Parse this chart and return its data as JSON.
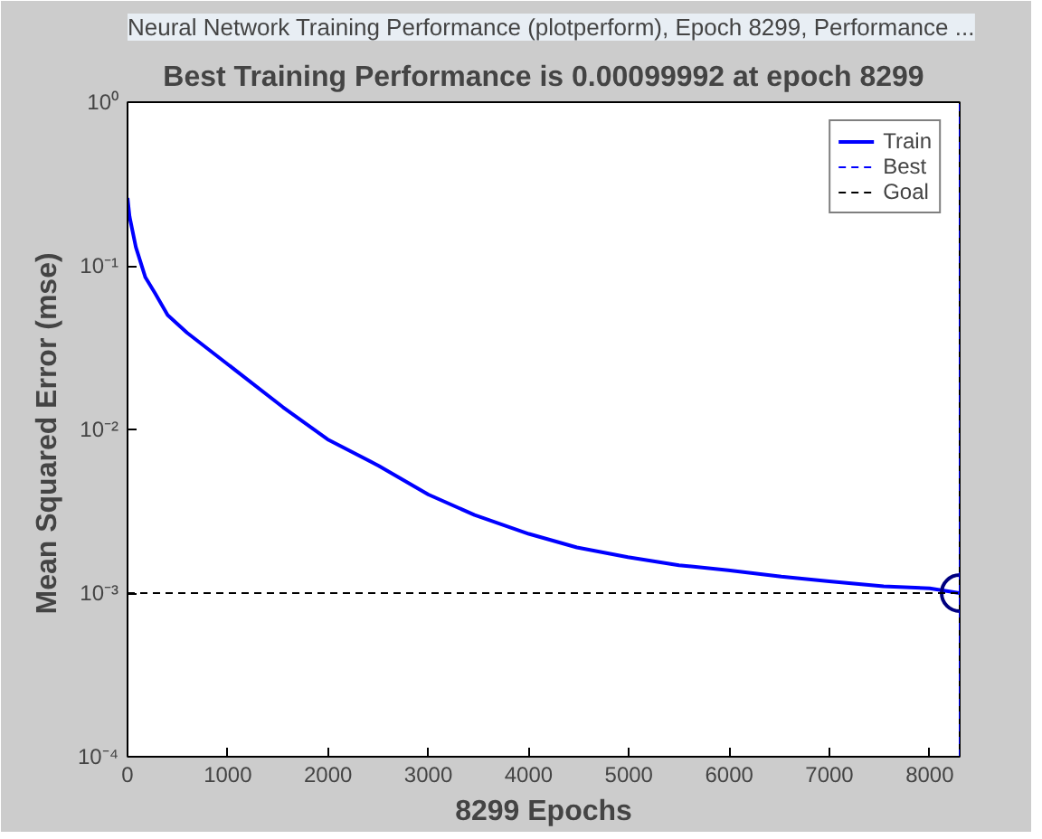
{
  "chart_data": {
    "type": "line",
    "title": "Best Training Performance is 0.00099992 at epoch 8299",
    "annotations": [
      "Neural Network Training Performance (plotperform), Epoch 8299, Performance ..."
    ],
    "xlabel": "8299 Epochs",
    "ylabel": "Mean Squared Error  (mse)",
    "series": [
      {
        "name": "Train",
        "color": "#0000ff",
        "x": [
          0,
          20,
          83,
          178,
          274,
          400,
          593,
          1000,
          1549,
          1995,
          2505,
          3000,
          3461,
          4003,
          4481,
          4990,
          5500,
          5991,
          6520,
          6998,
          7540,
          8000,
          8299
        ],
        "values": [
          0.26,
          0.2,
          0.13,
          0.085,
          0.068,
          0.05,
          0.039,
          0.025,
          0.0137,
          0.0087,
          0.006,
          0.004,
          0.003,
          0.0023,
          0.0019,
          0.00166,
          0.00148,
          0.00138,
          0.00126,
          0.00118,
          0.0011,
          0.00107,
          0.00099992
        ]
      },
      {
        "type": "scatter",
        "marker": "circle",
        "color": "#000080",
        "x": [
          8299
        ],
        "values": [
          0.00099992
        ]
      }
    ],
    "ref_lines": [
      {
        "axis": "x",
        "value": 8299,
        "label": "Best",
        "color": "#0000ff",
        "line_style": "dashed"
      },
      {
        "axis": "y",
        "value": 0.001,
        "label": "Goal",
        "color": "#000000",
        "line_style": "dashed"
      }
    ],
    "log": "y",
    "grid": false,
    "legend": "top right",
    "xlim": [
      0,
      8299
    ],
    "xticks": [
      0,
      1000,
      2000,
      3000,
      4000,
      5000,
      6000,
      7000,
      8000
    ],
    "ylim": [
      0.0001,
      1
    ],
    "yticks": [
      {
        "value": 0.0001,
        "label": "10⁻⁴"
      },
      {
        "value": 0.001,
        "label": "10⁻³"
      },
      {
        "value": 0.01,
        "label": "10⁻²"
      },
      {
        "value": 0.1,
        "label": "10⁻¹"
      },
      {
        "value": 1,
        "label": "10⁰"
      }
    ]
  }
}
